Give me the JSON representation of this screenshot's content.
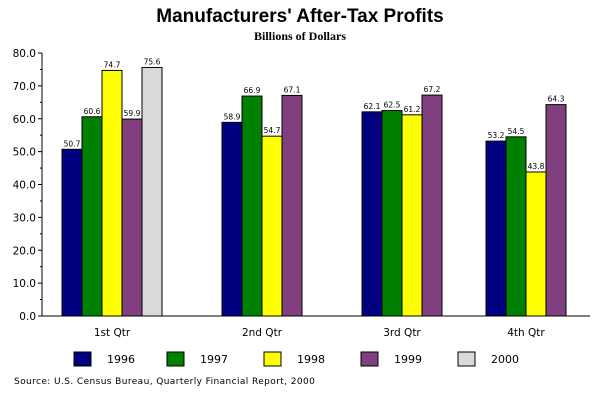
{
  "chart_data": {
    "type": "bar",
    "title": "Manufacturers' After-Tax Profits",
    "subtitle": "Billions of Dollars",
    "xlabel": "",
    "ylabel": "",
    "ylim": [
      0,
      80
    ],
    "yticks": [
      "0.0",
      "10.0",
      "20.0",
      "30.0",
      "40.0",
      "50.0",
      "60.0",
      "70.0",
      "80.0"
    ],
    "grid": false,
    "legend_position": "bottom",
    "categories": [
      "1st Qtr",
      "2nd Qtr",
      "3rd Qtr",
      "4th Qtr"
    ],
    "series": [
      {
        "name": "1996",
        "color": "#000080",
        "values": [
          50.7,
          58.9,
          62.1,
          53.2
        ],
        "labels": [
          "50.7",
          "58.9",
          "62.1",
          "53.2"
        ]
      },
      {
        "name": "1997",
        "color": "#008000",
        "values": [
          60.6,
          66.9,
          62.5,
          54.5
        ],
        "labels": [
          "60.6",
          "66.9",
          "62.5",
          "54.5"
        ]
      },
      {
        "name": "1998",
        "color": "#ffff00",
        "values": [
          74.7,
          54.7,
          61.2,
          43.8
        ],
        "labels": [
          "74.7",
          "54.7",
          "61.2",
          "43.8"
        ]
      },
      {
        "name": "1999",
        "color": "#804080",
        "values": [
          59.9,
          67.1,
          67.2,
          64.3
        ],
        "labels": [
          "59.9",
          "67.1",
          "67.2",
          "64.3"
        ]
      },
      {
        "name": "2000",
        "color": "#d9d9d9",
        "values": [
          75.6,
          null,
          null,
          null
        ],
        "labels": [
          "75.6",
          null,
          null,
          null
        ]
      }
    ]
  },
  "source": "Source:  U.S. Census Bureau, Quarterly Financial Report, 2000"
}
